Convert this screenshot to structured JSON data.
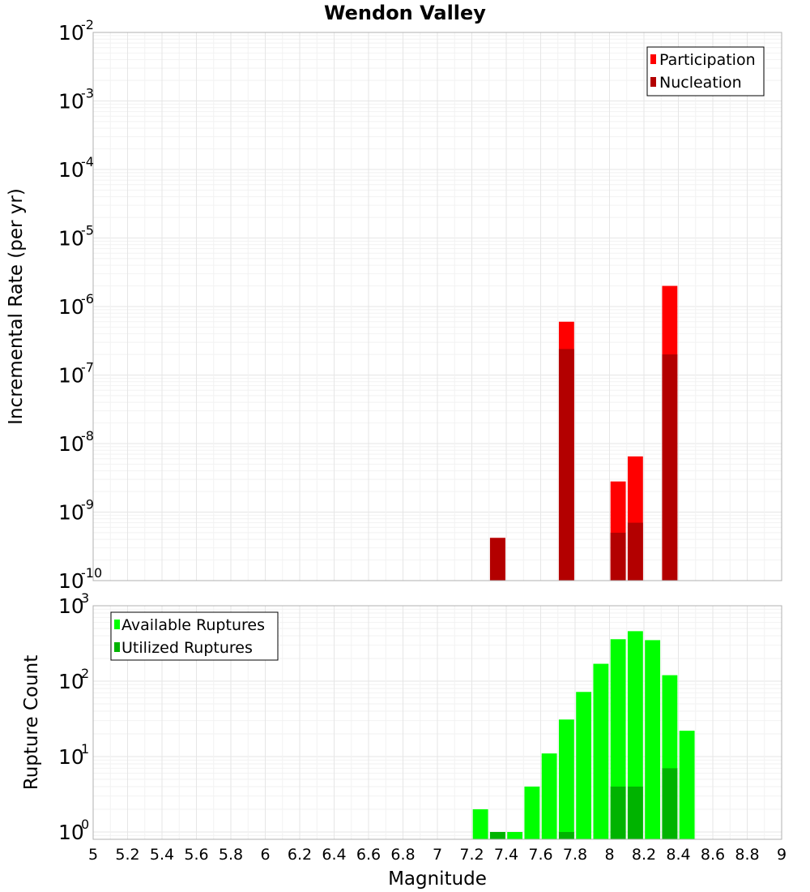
{
  "title": "Wendon Valley",
  "xlabel": "Magnitude",
  "x_ticks": [
    "5",
    "5.2",
    "5.4",
    "5.6",
    "5.8",
    "6",
    "6.2",
    "6.4",
    "6.6",
    "6.8",
    "7",
    "7.2",
    "7.4",
    "7.6",
    "7.8",
    "8",
    "8.2",
    "8.4",
    "8.6",
    "8.8",
    "9"
  ],
  "colors": {
    "participation": "#ff0000",
    "nucleation": "#b30000",
    "available": "#00ff00",
    "utilized": "#00b300"
  },
  "chart_data": [
    {
      "type": "bar",
      "panel": "rate",
      "title": "Wendon Valley",
      "xlabel": "",
      "ylabel": "Incremental Rate (per yr)",
      "xlim": [
        5,
        9
      ],
      "ylim": [
        1e-10,
        0.01
      ],
      "yscale": "log",
      "y_tick_exponents": [
        "-10",
        "-9",
        "-8",
        "-7",
        "-6",
        "-5",
        "-4",
        "-3",
        "-2"
      ],
      "grid": true,
      "legend_position": "top-right",
      "bar_width": 0.1,
      "series": [
        {
          "name": "Participation",
          "color": "#ff0000",
          "points": [
            {
              "x": 7.35,
              "y": 4.2e-10
            },
            {
              "x": 7.75,
              "y": 6e-07
            },
            {
              "x": 8.05,
              "y": 2.8e-09
            },
            {
              "x": 8.15,
              "y": 6.5e-09
            },
            {
              "x": 8.35,
              "y": 2e-06
            }
          ]
        },
        {
          "name": "Nucleation",
          "color": "#b30000",
          "points": [
            {
              "x": 7.35,
              "y": 4.2e-10
            },
            {
              "x": 7.75,
              "y": 2.4e-07
            },
            {
              "x": 8.05,
              "y": 5e-10
            },
            {
              "x": 8.15,
              "y": 7e-10
            },
            {
              "x": 8.35,
              "y": 2e-07
            }
          ]
        }
      ]
    },
    {
      "type": "bar",
      "panel": "count",
      "xlabel": "Magnitude",
      "ylabel": "Rupture Count",
      "xlim": [
        5,
        9
      ],
      "ylim": [
        0.8,
        1000
      ],
      "yscale": "log",
      "y_tick_exponents": [
        "0",
        "1",
        "2",
        "3"
      ],
      "grid": true,
      "legend_position": "top-left",
      "bar_width": 0.1,
      "series": [
        {
          "name": "Available Ruptures",
          "color": "#00ff00",
          "points": [
            {
              "x": 7.25,
              "y": 2
            },
            {
              "x": 7.35,
              "y": 1
            },
            {
              "x": 7.45,
              "y": 1
            },
            {
              "x": 7.55,
              "y": 4
            },
            {
              "x": 7.65,
              "y": 11
            },
            {
              "x": 7.75,
              "y": 31
            },
            {
              "x": 7.85,
              "y": 72
            },
            {
              "x": 7.95,
              "y": 170
            },
            {
              "x": 8.05,
              "y": 360
            },
            {
              "x": 8.15,
              "y": 460
            },
            {
              "x": 8.25,
              "y": 350
            },
            {
              "x": 8.35,
              "y": 120
            },
            {
              "x": 8.45,
              "y": 22
            }
          ]
        },
        {
          "name": "Utilized Ruptures",
          "color": "#00b300",
          "points": [
            {
              "x": 7.35,
              "y": 1
            },
            {
              "x": 7.75,
              "y": 1
            },
            {
              "x": 8.05,
              "y": 4
            },
            {
              "x": 8.15,
              "y": 4
            },
            {
              "x": 8.35,
              "y": 7
            }
          ]
        }
      ]
    }
  ]
}
